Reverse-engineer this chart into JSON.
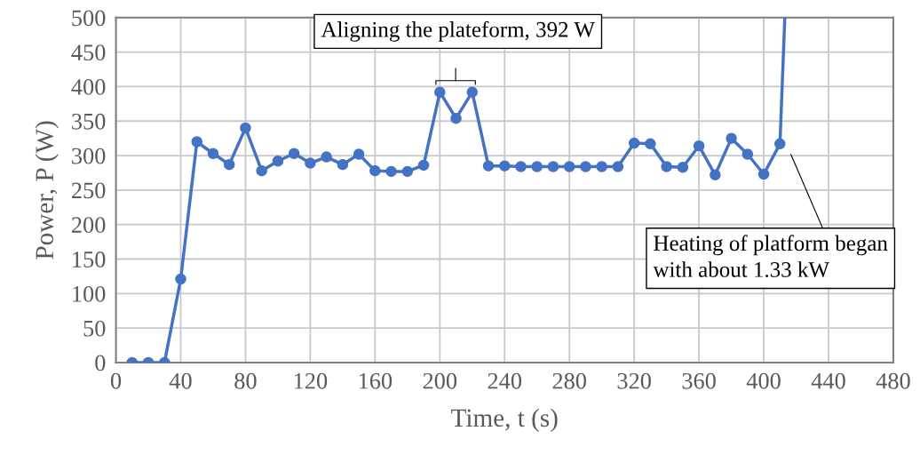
{
  "chart_data": {
    "type": "line",
    "xlabel": "Time, t (s)",
    "ylabel": "Power, P (W)",
    "xlim": [
      0,
      480
    ],
    "xticks": [
      0,
      40,
      80,
      120,
      160,
      200,
      240,
      280,
      320,
      360,
      400,
      440,
      480
    ],
    "ylim": [
      0,
      500
    ],
    "yticks": [
      0,
      50,
      100,
      150,
      200,
      250,
      300,
      350,
      400,
      450,
      500
    ],
    "grid": true,
    "marker": "circle",
    "line_style": "solid",
    "series": [
      {
        "color": "#4472c4",
        "x": [
          10,
          20,
          30,
          40,
          50,
          60,
          70,
          80,
          90,
          100,
          110,
          120,
          130,
          140,
          150,
          160,
          170,
          180,
          190,
          200,
          210,
          220,
          230,
          240,
          250,
          260,
          270,
          280,
          290,
          300,
          310,
          320,
          330,
          340,
          350,
          360,
          370,
          380,
          390,
          400,
          410
        ],
        "values": [
          0,
          0,
          0,
          121,
          320,
          303,
          287,
          340,
          278,
          292,
          303,
          289,
          298,
          287,
          302,
          278,
          277,
          277,
          286,
          392,
          354,
          392,
          285,
          285,
          284,
          284,
          284,
          284,
          284,
          284,
          284,
          318,
          317,
          284,
          283,
          314,
          272,
          325,
          302,
          273,
          317
        ]
      },
      {
        "color": "#4472c4",
        "marker": "none",
        "x": [
          410,
          413
        ],
        "values": [
          317,
          500
        ]
      }
    ],
    "annotations": [
      "Aligning the plateform, 392 W",
      "Heating of platform began with about 1.33 kW"
    ]
  }
}
